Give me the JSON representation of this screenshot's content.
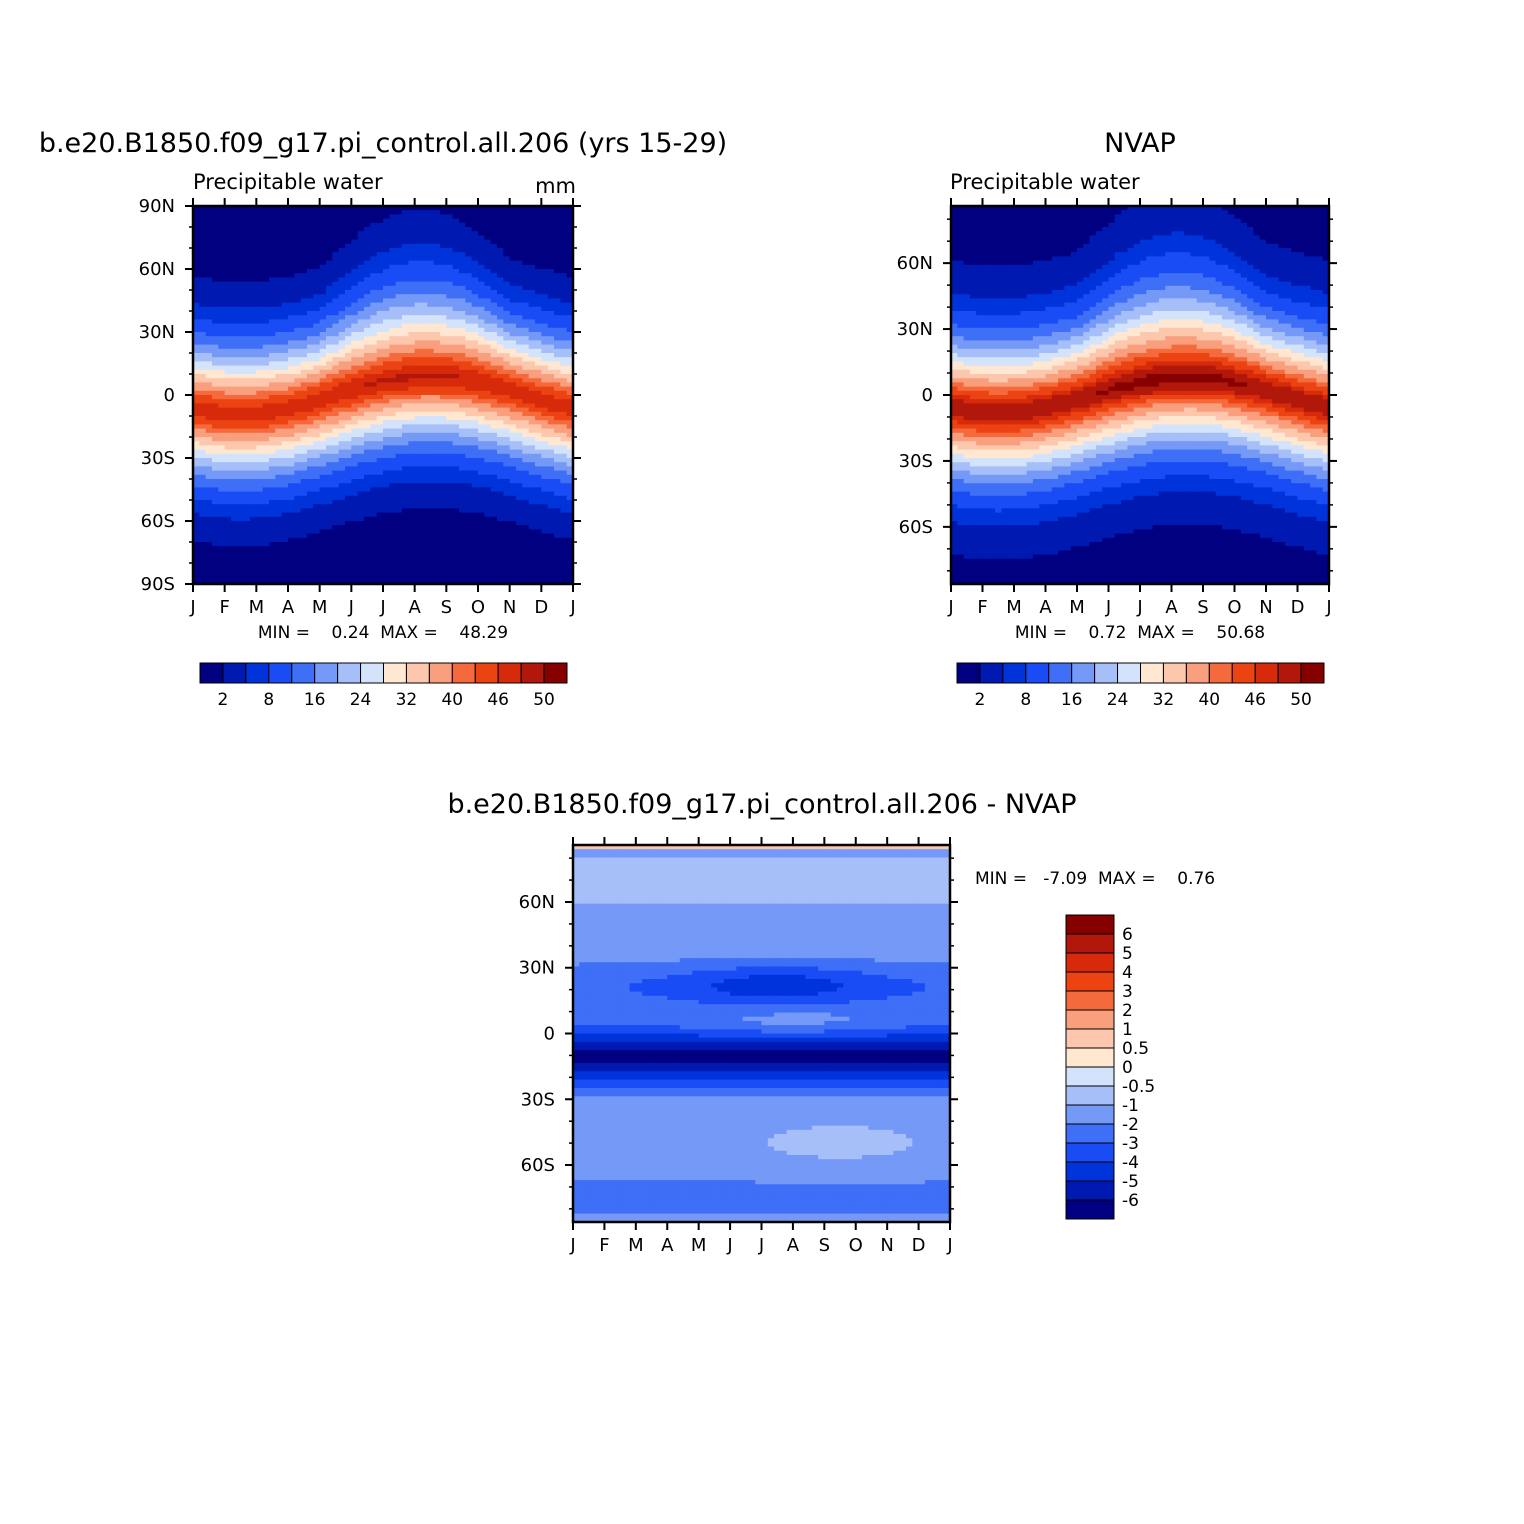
{
  "chart_data": [
    {
      "type": "heatmap",
      "title": "b.e20.B1850.f09_g17.pi_control.all.206 (yrs 15-29)",
      "subtitle": "Precipitable water",
      "units": "mm",
      "x_ticks": [
        "J",
        "F",
        "M",
        "A",
        "M",
        "J",
        "J",
        "A",
        "S",
        "O",
        "N",
        "D",
        "J"
      ],
      "y_ticks": [
        "90N",
        "60N",
        "30N",
        "0",
        "30S",
        "60S",
        "90S"
      ],
      "ylim": [
        -90,
        90
      ],
      "stats_label": "MIN =    0.24  MAX =    48.29",
      "min": 0.24,
      "max": 48.29,
      "field_model": {
        "kind": "abs",
        "peak": 48.29,
        "floor": 0.24,
        "itcz_amp": 9,
        "itcz_phase": 7.5
      },
      "colorbar": {
        "orientation": "horizontal",
        "levels": [
          2,
          5,
          8,
          12,
          16,
          20,
          24,
          28,
          32,
          36,
          40,
          43,
          46,
          48,
          50
        ],
        "labels": [
          "2",
          "8",
          "16",
          "24",
          "32",
          "40",
          "46",
          "50"
        ],
        "colors": [
          "#000080",
          "#0019b0",
          "#0033d9",
          "#1a4cf5",
          "#3f6ff7",
          "#7599f6",
          "#a6bff8",
          "#d2e3fb",
          "#ffe7d2",
          "#fdc7ad",
          "#f99f7e",
          "#f56a3d",
          "#ec4313",
          "#d62a0b",
          "#b1180b",
          "#860000"
        ]
      }
    },
    {
      "type": "heatmap",
      "title": "NVAP",
      "subtitle": "Precipitable water",
      "x_ticks": [
        "J",
        "F",
        "M",
        "A",
        "M",
        "J",
        "J",
        "A",
        "S",
        "O",
        "N",
        "D",
        "J"
      ],
      "y_ticks": [
        "60N",
        "30N",
        "0",
        "30S",
        "60S"
      ],
      "ylim": [
        -86,
        86
      ],
      "stats_label": "MIN =    0.72  MAX =    50.68",
      "min": 0.72,
      "max": 50.68,
      "field_model": {
        "kind": "abs",
        "peak": 50.68,
        "floor": 0.72,
        "itcz_amp": 8,
        "itcz_phase": 7.5
      },
      "colorbar": {
        "orientation": "horizontal",
        "levels": [
          2,
          5,
          8,
          12,
          16,
          20,
          24,
          28,
          32,
          36,
          40,
          43,
          46,
          48,
          50
        ],
        "labels": [
          "2",
          "8",
          "16",
          "24",
          "32",
          "40",
          "46",
          "50"
        ],
        "colors": [
          "#000080",
          "#0019b0",
          "#0033d9",
          "#1a4cf5",
          "#3f6ff7",
          "#7599f6",
          "#a6bff8",
          "#d2e3fb",
          "#ffe7d2",
          "#fdc7ad",
          "#f99f7e",
          "#f56a3d",
          "#ec4313",
          "#d62a0b",
          "#b1180b",
          "#860000"
        ]
      }
    },
    {
      "type": "heatmap",
      "title": "b.e20.B1850.f09_g17.pi_control.all.206 - NVAP",
      "x_ticks": [
        "J",
        "F",
        "M",
        "A",
        "M",
        "J",
        "J",
        "A",
        "S",
        "O",
        "N",
        "D",
        "J"
      ],
      "y_ticks": [
        "60N",
        "30N",
        "0",
        "30S",
        "60S"
      ],
      "ylim": [
        -86,
        86
      ],
      "stats_label": "MIN =   -7.09  MAX =    0.76",
      "min": -7.09,
      "max": 0.76,
      "field_model": {
        "kind": "diff"
      },
      "colorbar": {
        "orientation": "vertical",
        "levels": [
          -6,
          -5,
          -4,
          -3,
          -2,
          -1,
          -0.5,
          0,
          0.5,
          1,
          2,
          3,
          4,
          5,
          6
        ],
        "labels": [
          "6",
          "5",
          "4",
          "3",
          "2",
          "1",
          "0.5",
          "0",
          "-0.5",
          "-1",
          "-2",
          "-3",
          "-4",
          "-5",
          "-6"
        ],
        "colors": [
          "#000080",
          "#0019b0",
          "#0033d9",
          "#1a4cf5",
          "#3f6ff7",
          "#7599f6",
          "#a6bff8",
          "#d2e3fb",
          "#ffe7d2",
          "#fdc7ad",
          "#f99f7e",
          "#f56a3d",
          "#ec4313",
          "#d62a0b",
          "#b1180b",
          "#860000"
        ]
      }
    }
  ]
}
